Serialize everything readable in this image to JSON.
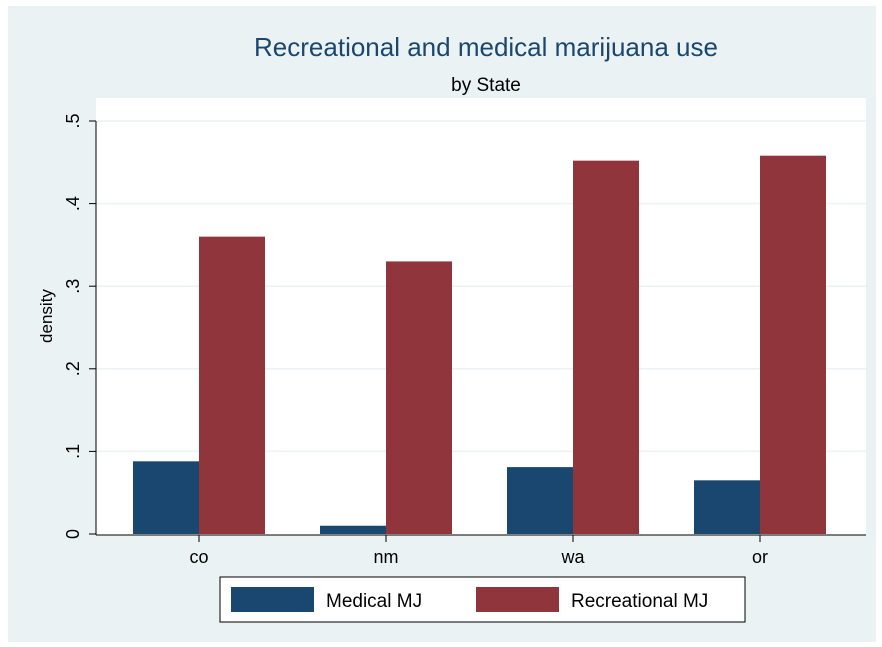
{
  "chart_data": {
    "type": "bar",
    "title": "Recreational and medical marijuana use",
    "subtitle": "by State",
    "xlabel": "",
    "ylabel": "density",
    "categories": [
      "co",
      "nm",
      "wa",
      "or"
    ],
    "series": [
      {
        "name": "Medical MJ",
        "values": [
          0.088,
          0.01,
          0.081,
          0.065
        ],
        "color": "#1a476f"
      },
      {
        "name": "Recreational MJ",
        "values": [
          0.36,
          0.33,
          0.452,
          0.458
        ],
        "color": "#90353b"
      }
    ],
    "ylim": [
      0,
      0.5
    ],
    "yticks": [
      0,
      0.1,
      0.2,
      0.3,
      0.4,
      0.5
    ],
    "ytick_labels": [
      "0",
      ".1",
      ".2",
      ".3",
      ".4",
      ".5"
    ],
    "grid": true,
    "legend_position": "bottom"
  },
  "colors": {
    "outer_background": "#eaf2f3",
    "plot_background": "#ffffff",
    "title_color": "#1a476f",
    "grid_color": "#eaf2f3"
  }
}
